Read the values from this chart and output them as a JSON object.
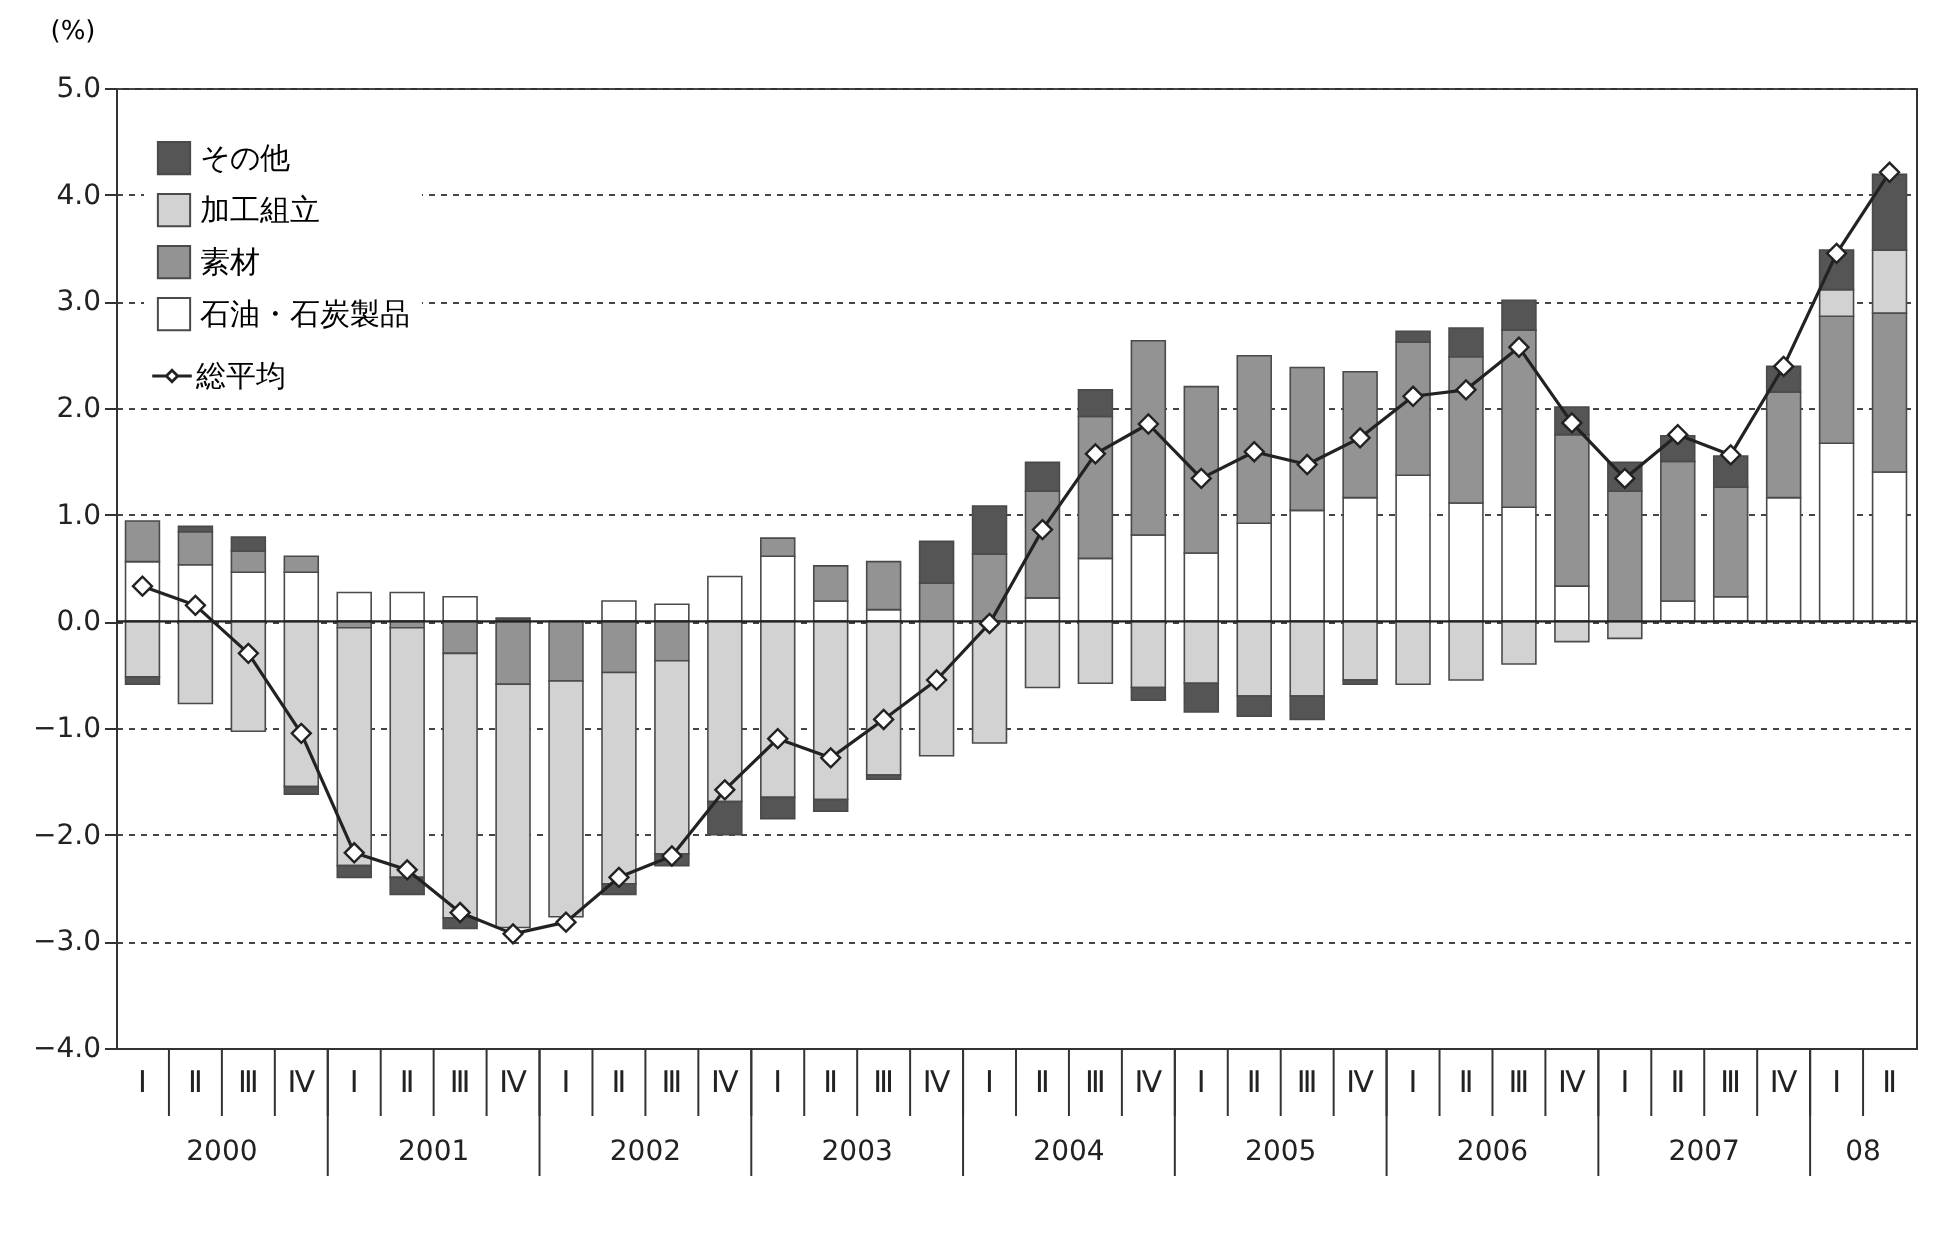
{
  "chart_data": {
    "type": "bar",
    "stacked": true,
    "ylabel": "(%)",
    "categories": [
      "Ⅰ",
      "Ⅱ",
      "Ⅲ",
      "Ⅳ",
      "Ⅰ",
      "Ⅱ",
      "Ⅲ",
      "Ⅳ",
      "Ⅰ",
      "Ⅱ",
      "Ⅲ",
      "Ⅳ",
      "Ⅰ",
      "Ⅱ",
      "Ⅲ",
      "Ⅳ",
      "Ⅰ",
      "Ⅱ",
      "Ⅲ",
      "Ⅳ",
      "Ⅰ",
      "Ⅱ",
      "Ⅲ",
      "Ⅳ",
      "Ⅰ",
      "Ⅱ",
      "Ⅲ",
      "Ⅳ",
      "Ⅰ",
      "Ⅱ",
      "Ⅲ",
      "Ⅳ",
      "Ⅰ",
      "Ⅱ"
    ],
    "series": [
      {
        "name": "石油・石炭製品",
        "color": "#ffffff",
        "values": [
          0.56,
          0.53,
          0.46,
          0.46,
          0.27,
          0.27,
          0.23,
          0,
          0,
          0.19,
          0.16,
          0.42,
          0.61,
          0.19,
          0.11,
          null,
          0,
          0.22,
          0.59,
          0.81,
          0.64,
          0.92,
          1.04,
          1.16,
          1.37,
          1.11,
          1.07,
          0.33,
          null,
          0.19,
          0.23,
          1.16,
          1.67,
          1.4
        ]
      },
      {
        "name": "素材",
        "color": "#939393",
        "values": [
          0.38,
          0.31,
          0.2,
          0.15,
          -0.06,
          -0.06,
          -0.3,
          -0.59,
          -0.56,
          -0.48,
          -0.37,
          0,
          0.17,
          0.33,
          0.45,
          0.36,
          0.63,
          1.0,
          1.33,
          1.82,
          1.56,
          1.57,
          1.34,
          1.18,
          1.25,
          1.37,
          1.66,
          1.42,
          1.22,
          1.31,
          1.03,
          0.99,
          1.19,
          1.49
        ]
      },
      {
        "name": "加工組立",
        "color": "#d2d2d2",
        "values": [
          -0.52,
          -0.77,
          -1.03,
          -1.55,
          -2.23,
          -2.34,
          -2.48,
          -2.28,
          -2.21,
          -1.98,
          -1.81,
          -1.69,
          -1.65,
          -1.67,
          -1.44,
          -1.26,
          -1.14,
          -0.62,
          -0.58,
          -0.62,
          -0.58,
          -0.7,
          -0.7,
          -0.55,
          -0.59,
          -0.55,
          -0.4,
          -0.19,
          -0.16,
          0,
          0,
          0,
          0.25,
          0.59
        ]
      },
      {
        "name": "その他",
        "color": "#555555",
        "values": [
          -0.07,
          0.05,
          0.13,
          -0.07,
          -0.11,
          -0.16,
          -0.1,
          0.03,
          0,
          -0.1,
          -0.11,
          -0.31,
          -0.2,
          -0.11,
          -0.04,
          0.39,
          0.45,
          0.27,
          0.25,
          -0.12,
          -0.27,
          -0.19,
          -0.22,
          -0.04,
          0.1,
          0.27,
          0.28,
          0.26,
          0.27,
          0.24,
          0.29,
          0.24,
          0.37,
          0.71
        ]
      },
      {
        "name": "総平均",
        "type": "line",
        "color": "#222222",
        "marker": "diamond",
        "values": [
          0.33,
          0.15,
          -0.3,
          -1.05,
          -2.17,
          -2.33,
          -2.73,
          -2.93,
          -2.82,
          -2.4,
          -2.2,
          -1.58,
          -1.1,
          -1.28,
          -0.92,
          -0.55,
          -0.02,
          0.86,
          1.57,
          1.85,
          1.34,
          1.59,
          1.47,
          1.72,
          2.11,
          2.17,
          2.57,
          1.86,
          1.34,
          1.75,
          1.56,
          2.39,
          3.45,
          4.21
        ]
      }
    ],
    "ylim": [
      -4,
      5
    ],
    "yticks": [
      {
        "value": -4,
        "label": "−4.0"
      },
      {
        "value": -3,
        "label": "−3.0"
      },
      {
        "value": -2,
        "label": "−2.0"
      },
      {
        "value": -1,
        "label": "−1.0"
      },
      {
        "value": 0,
        "label": "0.0"
      },
      {
        "value": 1,
        "label": "1.0"
      },
      {
        "value": 2,
        "label": "2.0"
      },
      {
        "value": 3,
        "label": "3.0"
      },
      {
        "value": 4,
        "label": "4.0"
      },
      {
        "value": 5,
        "label": "5.0"
      }
    ],
    "grid": "y",
    "legend": "top left",
    "ref_lines": [
      {
        "axis": "y",
        "value": 0
      }
    ],
    "annotations": [
      "2000",
      "2001",
      "2002",
      "2003",
      "2004",
      "2005",
      "2006",
      "2007",
      "08"
    ]
  }
}
